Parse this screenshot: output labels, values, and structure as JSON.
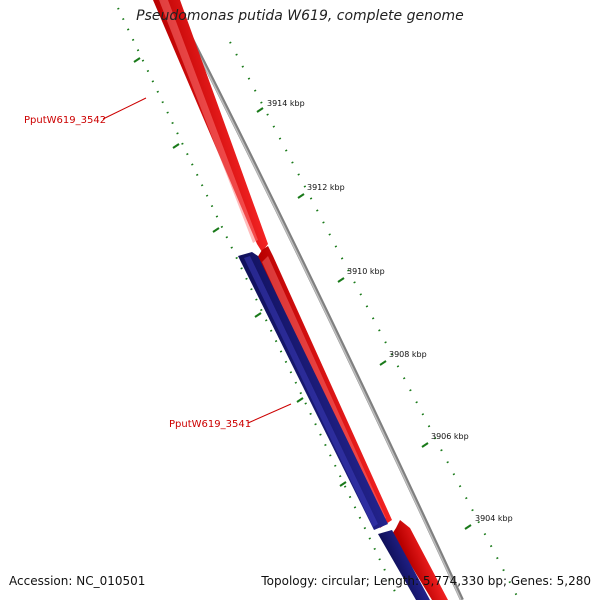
{
  "title": "Pseudomonas putida W619, complete genome",
  "footer": {
    "accession": "Accession: NC_010501",
    "summary": "Topology: circular; Length: 5,774,330 bp; Genes: 5,280"
  },
  "kbp_labels": [
    "3914 kbp",
    "3912 kbp",
    "3910 kbp",
    "3908 kbp",
    "3906 kbp",
    "3904 kbp"
  ],
  "gene_labels": [
    "PputW619_3542",
    "PputW619_3541"
  ],
  "colors": {
    "forward_gene": "#ff0000",
    "reverse_gene": "#1a1a80",
    "backbone": "#808080",
    "ticks": "#1a7a1a",
    "label": "#cc0000"
  }
}
